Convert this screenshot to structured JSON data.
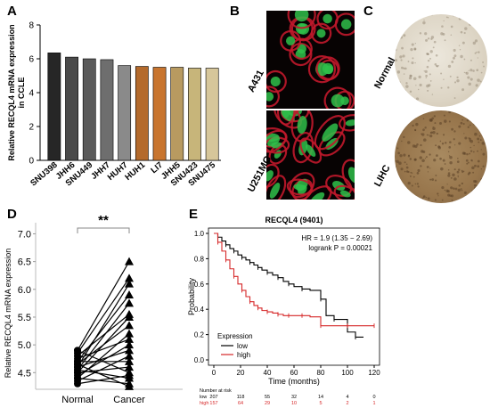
{
  "panels": {
    "A": "A",
    "B": "B",
    "C": "C",
    "D": "D",
    "E": "E"
  },
  "colors": {
    "bar_dark": "#262626",
    "bar_mid": "#5a5a5a",
    "bar_gray": "#9a9a9a",
    "bar_orange": "#c8752f",
    "bar_tan": "#c7b57a",
    "km_low": "#000000",
    "km_high": "#d62728",
    "stain_red": "#c0182b",
    "stain_green": "#2fbf4a",
    "ihc_normal": "#d9d2c3",
    "ihc_tumor": "#9c7d55"
  },
  "chart_data": [
    {
      "id": "A",
      "type": "bar",
      "categories": [
        "SNU398",
        "JHH6",
        "SNU449",
        "JHH7",
        "HUH7",
        "HUH1",
        "LI7",
        "JHH5",
        "SNU423",
        "SNU475"
      ],
      "values": [
        6.35,
        6.1,
        6.0,
        5.95,
        5.6,
        5.55,
        5.5,
        5.5,
        5.45,
        5.45
      ],
      "bar_colors": [
        "#262626",
        "#4a4a4a",
        "#5a5a5a",
        "#6e6e6e",
        "#8a8a8a",
        "#b46a2c",
        "#c8752f",
        "#b89a60",
        "#c7b57a",
        "#d6c69a"
      ],
      "ylabel": "Relative RECQL4 mRNA expression\nin CCLE",
      "ylim": [
        0,
        8
      ],
      "yticks": [
        "0",
        "2",
        "4",
        "6",
        "8"
      ]
    },
    {
      "id": "D",
      "type": "scatter",
      "title": "**",
      "categories": [
        "Normal",
        "Cancer"
      ],
      "ylabel": "Relative RECQL4 mRNA expression",
      "ylim": [
        4.2,
        7.2
      ],
      "yticks": [
        "4.5",
        "5.0",
        "5.5",
        "6.0",
        "6.5",
        "7.0"
      ],
      "pairs": [
        [
          4.9,
          6.5
        ],
        [
          4.85,
          6.2
        ],
        [
          4.6,
          6.1
        ],
        [
          4.7,
          5.9
        ],
        [
          4.55,
          5.75
        ],
        [
          4.8,
          5.55
        ],
        [
          4.5,
          5.5
        ],
        [
          4.65,
          5.35
        ],
        [
          4.4,
          5.2
        ],
        [
          4.75,
          5.1
        ],
        [
          4.45,
          5.0
        ],
        [
          4.6,
          4.9
        ],
        [
          4.35,
          4.8
        ],
        [
          4.7,
          4.7
        ],
        [
          4.5,
          4.6
        ],
        [
          4.9,
          4.5
        ],
        [
          4.3,
          4.45
        ],
        [
          4.55,
          4.4
        ],
        [
          4.4,
          4.3
        ],
        [
          4.65,
          4.25
        ]
      ]
    },
    {
      "id": "E",
      "type": "line",
      "title": "RECQL4 (9401)",
      "xlabel": "Time (months)",
      "ylabel": "Probability",
      "xlim": [
        0,
        120
      ],
      "ylim": [
        0,
        1.0
      ],
      "xticks": [
        "0",
        "20",
        "40",
        "60",
        "80",
        "100",
        "120"
      ],
      "yticks": [
        "0.0",
        "0.2",
        "0.4",
        "0.6",
        "0.8",
        "1.0"
      ],
      "annotation_hr": "HR = 1.9 (1.35 − 2.69)",
      "annotation_p": "logrank P = 0.00021",
      "legend_title": "Expression",
      "series": [
        {
          "name": "low",
          "x": [
            0,
            3,
            6,
            9,
            12,
            15,
            18,
            21,
            24,
            27,
            30,
            33,
            36,
            40,
            44,
            48,
            52,
            56,
            60,
            66,
            72,
            80,
            84,
            90,
            100,
            106,
            112
          ],
          "y": [
            1.0,
            0.97,
            0.94,
            0.91,
            0.88,
            0.86,
            0.83,
            0.81,
            0.79,
            0.77,
            0.75,
            0.73,
            0.71,
            0.69,
            0.67,
            0.65,
            0.62,
            0.6,
            0.58,
            0.56,
            0.55,
            0.48,
            0.35,
            0.32,
            0.22,
            0.18,
            0.18
          ]
        },
        {
          "name": "high",
          "x": [
            0,
            3,
            6,
            9,
            12,
            15,
            18,
            21,
            24,
            27,
            30,
            33,
            36,
            40,
            44,
            48,
            52,
            56,
            60,
            66,
            72,
            80,
            90,
            100,
            112,
            120
          ],
          "y": [
            1.0,
            0.93,
            0.86,
            0.79,
            0.72,
            0.66,
            0.6,
            0.55,
            0.5,
            0.46,
            0.43,
            0.41,
            0.39,
            0.38,
            0.37,
            0.36,
            0.35,
            0.35,
            0.35,
            0.35,
            0.34,
            0.27,
            0.27,
            0.27,
            0.27,
            0.27
          ]
        }
      ],
      "risk_title": "Number at risk",
      "risk_rows": [
        {
          "label": "low",
          "values": [
            "207",
            "118",
            "55",
            "32",
            "14",
            "4",
            "0"
          ]
        },
        {
          "label": "high",
          "values": [
            "157",
            "64",
            "29",
            "10",
            "5",
            "2",
            "1"
          ]
        }
      ]
    }
  ],
  "panelB": {
    "labels": [
      "A431",
      "U251MG"
    ]
  },
  "panelC": {
    "labels": [
      "Normal",
      "LIHC"
    ]
  }
}
